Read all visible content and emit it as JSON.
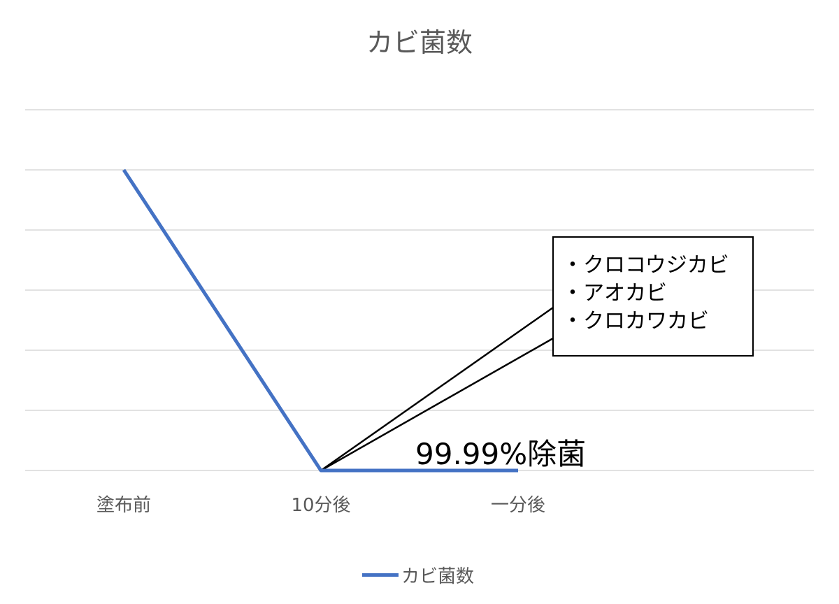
{
  "chart_data": {
    "type": "line",
    "title": "カビ菌数",
    "categories": [
      "塗布前",
      "10分後",
      "一分後"
    ],
    "series": [
      {
        "name": "カビ菌数",
        "values": [
          5,
          0,
          0
        ],
        "color": "#4472C4"
      }
    ],
    "ylim": [
      0,
      6
    ],
    "grid": true,
    "legend": "bottom",
    "annotations": {
      "callout_items": [
        "クロコウジカビ",
        "アオカビ",
        "クロカワカビ"
      ],
      "point_label": "99.99%除菌"
    }
  }
}
